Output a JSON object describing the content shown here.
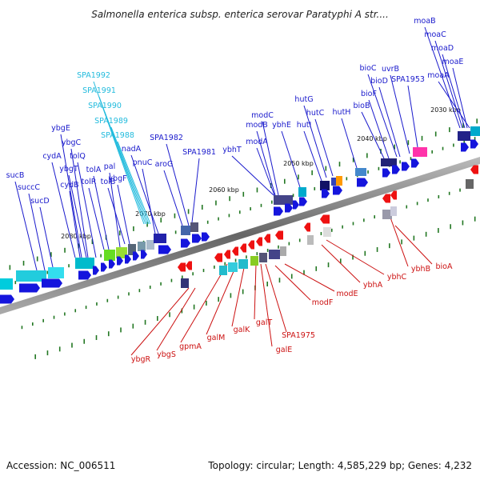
{
  "title": "Salmonella enterica subsp. enterica serovar Paratyphi A str....",
  "accession": "Accession: NC_006511",
  "topology": "Topology: circular; Length: 4,585,229 bp; Genes: 4,232",
  "colors": {
    "forward_label": "#1a1acc",
    "reverse_label": "#cc1111",
    "cyan_label": "#22bbdd",
    "forward_arrow": "#1515dd",
    "reverse_arrow": "#ee1111",
    "backbone": "#777777",
    "tick": "#227722"
  },
  "kbp_labels": [
    "2030 kbp",
    "2040 kbp",
    "2050 kbp",
    "2060 kbp",
    "2070 kbp",
    "2080 kbp"
  ],
  "forward_genes": [
    "moaB",
    "moaC",
    "moaD",
    "moaE",
    "moaA",
    "bioC",
    "uvrB",
    "bioD",
    "SPA1953",
    "bioF",
    "bioB",
    "hutG",
    "hutC",
    "hutH",
    "hutI",
    "modC",
    "modB",
    "ybhE",
    "modA",
    "ybhT",
    "SPA1982",
    "SPA1981",
    "nadA",
    "pnuC",
    "aroG",
    "ybgE",
    "ybgC",
    "cydA",
    "tolQ",
    "ybgT",
    "tolA",
    "tolR",
    "pal",
    "ybgF",
    "cydB",
    "tolB",
    "sucB",
    "succC",
    "sucD"
  ],
  "cyan_genes": [
    "SPA1992",
    "SPA1991",
    "SPA1990",
    "SPA1989",
    "SPA1988"
  ],
  "reverse_genes": [
    "bioA",
    "ybhB",
    "ybhC",
    "ybhA",
    "modE",
    "modF",
    "SPA1975",
    "galT",
    "galE",
    "galK",
    "galM",
    "gpmA",
    "ybgS",
    "ybgR"
  ]
}
